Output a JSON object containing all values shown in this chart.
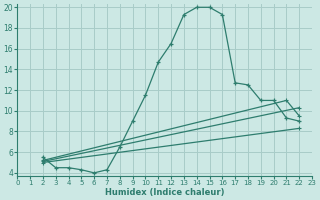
{
  "xlabel": "Humidex (Indice chaleur)",
  "bg_color": "#cce8e4",
  "grid_color": "#a8ccc8",
  "line_color": "#2e7d6e",
  "xlim": [
    0,
    23
  ],
  "ylim": [
    4,
    20
  ],
  "yticks": [
    4,
    6,
    8,
    10,
    12,
    14,
    16,
    18,
    20
  ],
  "xticks": [
    0,
    1,
    2,
    3,
    4,
    5,
    6,
    7,
    8,
    9,
    10,
    11,
    12,
    13,
    14,
    15,
    16,
    17,
    18,
    19,
    20,
    21,
    22,
    23
  ],
  "curve1_x": [
    2,
    3,
    4,
    5,
    6,
    7,
    8,
    9,
    10,
    11,
    12,
    13,
    14,
    15,
    16,
    17,
    18,
    19,
    20,
    21,
    22
  ],
  "curve1_y": [
    5.5,
    4.5,
    4.5,
    4.3,
    4.0,
    4.3,
    6.5,
    9.0,
    11.5,
    14.7,
    16.5,
    19.3,
    20.0,
    20.0,
    19.3,
    12.7,
    12.5,
    11.0,
    11.0,
    9.3,
    9.0
  ],
  "curve2_x": [
    2,
    21,
    22
  ],
  "curve2_y": [
    5.2,
    11.0,
    9.5
  ],
  "curve3_x": [
    2,
    22
  ],
  "curve3_y": [
    5.0,
    8.3
  ],
  "curve4_x": [
    2,
    22
  ],
  "curve4_y": [
    5.1,
    10.3
  ]
}
